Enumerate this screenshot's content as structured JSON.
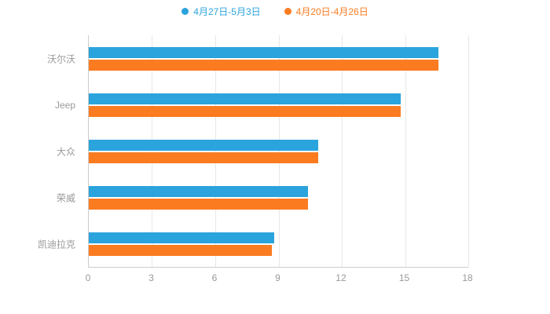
{
  "chart_data": {
    "type": "bar",
    "orientation": "horizontal",
    "title": "",
    "categories": [
      "沃尔沃",
      "Jeep",
      "大众",
      "荣威",
      "凯迪拉克"
    ],
    "series": [
      {
        "name": "4月27日-5月3日",
        "color": "#2BA3DC",
        "values": [
          16.6,
          14.8,
          10.9,
          10.4,
          8.8
        ]
      },
      {
        "name": "4月20日-4月26日",
        "color": "#FB7B21",
        "values": [
          16.6,
          14.8,
          10.9,
          10.4,
          8.7
        ]
      }
    ],
    "xlim": [
      0,
      18
    ],
    "x_ticks": [
      0,
      3,
      6,
      9,
      12,
      15,
      18
    ],
    "grid": true,
    "legend_position": "top"
  },
  "colors": {
    "axis": "#cccccc",
    "grid": "#e8e8e8",
    "tick_label": "#999999",
    "category_label": "#999999",
    "background": "#ffffff"
  }
}
